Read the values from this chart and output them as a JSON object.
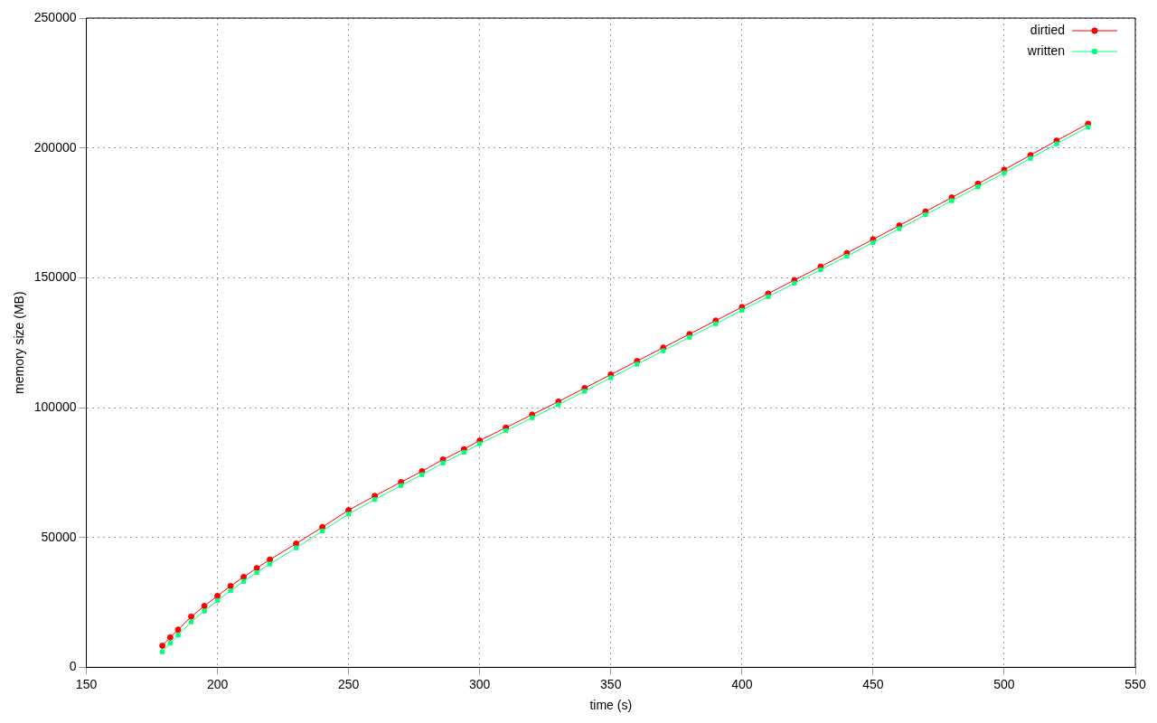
{
  "chart_data": {
    "type": "line",
    "xlabel": "time (s)",
    "ylabel": "memory size (MB)",
    "x": [
      179,
      182,
      185,
      190,
      195,
      200,
      205,
      210,
      215,
      220,
      230,
      240,
      250,
      260,
      270,
      278,
      286,
      294,
      300,
      310,
      320,
      330,
      340,
      350,
      360,
      370,
      380,
      390,
      400,
      410,
      420,
      430,
      440,
      450,
      460,
      470,
      480,
      490,
      500,
      510,
      520,
      532
    ],
    "series": [
      {
        "name": "dirtied",
        "color": "#ff0000",
        "marker": "circle",
        "values": [
          8300,
          11500,
          14500,
          19500,
          23600,
          27500,
          31300,
          34800,
          38200,
          41500,
          47600,
          54000,
          60500,
          66000,
          71300,
          75500,
          80000,
          84000,
          87300,
          92300,
          97300,
          102300,
          107500,
          112700,
          117900,
          123100,
          128300,
          133500,
          138700,
          143900,
          149100,
          154300,
          159500,
          164800,
          170100,
          175500,
          180900,
          186200,
          191600,
          197200,
          202800,
          209300
        ]
      },
      {
        "name": "written",
        "color": "#00ff7f",
        "marker": "square",
        "values": [
          6000,
          9300,
          12400,
          17500,
          21700,
          25700,
          29500,
          33100,
          36500,
          39800,
          46000,
          52500,
          59000,
          64600,
          70000,
          74200,
          78700,
          82800,
          86100,
          91100,
          96100,
          101100,
          106300,
          111500,
          116700,
          121900,
          127100,
          132300,
          137500,
          142700,
          147900,
          153100,
          158300,
          163600,
          168900,
          174300,
          179700,
          185000,
          190400,
          196000,
          201600,
          208100
        ]
      }
    ],
    "xlim": [
      150,
      550
    ],
    "xticks": [
      150,
      200,
      250,
      300,
      350,
      400,
      450,
      500,
      550
    ],
    "ylim": [
      0,
      250000
    ],
    "yticks": [
      0,
      50000,
      100000,
      150000,
      200000,
      250000
    ],
    "grid": true,
    "legend": "top right",
    "line_style": "solid"
  }
}
